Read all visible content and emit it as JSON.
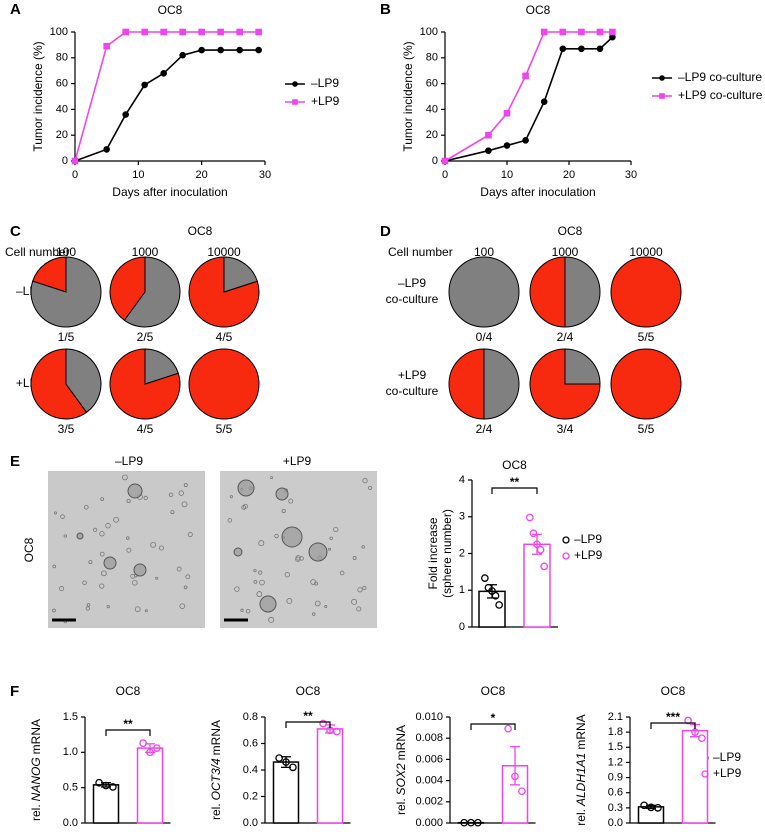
{
  "chart_data": [
    {
      "type": "line",
      "panel": "A",
      "title": "OC8",
      "xlabel": "Days after inoculation",
      "ylabel": "Tumor incidence (%)",
      "x": [
        0,
        5,
        8,
        11,
        14,
        17,
        20,
        23,
        26,
        29
      ],
      "series": [
        {
          "name": "–LP9",
          "color": "#000000",
          "marker": "circle",
          "values": [
            0,
            9,
            36,
            59,
            68,
            82,
            86,
            86,
            86,
            86
          ]
        },
        {
          "name": "+LP9",
          "color": "#ee45ee",
          "marker": "square",
          "values": [
            0,
            89,
            100,
            100,
            100,
            100,
            100,
            100,
            100,
            100
          ]
        }
      ],
      "xlim": [
        0,
        30
      ],
      "xticks": [
        0,
        10,
        20,
        30
      ],
      "ylim": [
        0,
        100
      ],
      "yticks": [
        0,
        20,
        40,
        60,
        80,
        100
      ]
    },
    {
      "type": "line",
      "panel": "B",
      "title": "OC8",
      "xlabel": "Days after inoculation",
      "ylabel": "Tumor incidence (%)",
      "x": [
        0,
        7,
        10,
        13,
        16,
        19,
        22,
        25,
        27
      ],
      "series": [
        {
          "name": "–LP9 co-culture",
          "color": "#000000",
          "marker": "circle",
          "values": [
            0,
            8,
            12,
            16,
            46,
            87,
            87,
            87,
            96
          ]
        },
        {
          "name": "+LP9 co-culture",
          "color": "#ee45ee",
          "marker": "square",
          "values": [
            0,
            20,
            37,
            66,
            100,
            100,
            100,
            100,
            100
          ]
        }
      ],
      "xlim": [
        0,
        30
      ],
      "xticks": [
        0,
        10,
        20,
        30
      ],
      "ylim": [
        0,
        100
      ],
      "yticks": [
        0,
        20,
        40,
        60,
        80,
        100
      ]
    },
    {
      "type": "pie-grid",
      "panel": "C",
      "title": "OC8",
      "header": "Cell number",
      "columns": [
        "100",
        "1000",
        "10000"
      ],
      "colors": {
        "positive": "#f72a10",
        "negative": "#808080"
      },
      "rows": [
        {
          "name": [
            "–LP9"
          ],
          "values": [
            1,
            2,
            4
          ],
          "totals": [
            5,
            5,
            5
          ],
          "value_labels": [
            "1/5",
            "2/5",
            "4/5"
          ]
        },
        {
          "name": [
            "+LP9"
          ],
          "values": [
            3,
            4,
            5
          ],
          "totals": [
            5,
            5,
            5
          ],
          "value_labels": [
            "3/5",
            "4/5",
            "5/5"
          ]
        }
      ]
    },
    {
      "type": "pie-grid",
      "panel": "D",
      "title": "OC8",
      "header": "Cell number",
      "columns": [
        "100",
        "1000",
        "10000"
      ],
      "colors": {
        "positive": "#f72a10",
        "negative": "#808080"
      },
      "rows": [
        {
          "name": [
            "–LP9",
            "co-culture"
          ],
          "values": [
            0,
            2,
            5
          ],
          "totals": [
            4,
            4,
            5
          ],
          "value_labels": [
            "0/4",
            "2/4",
            "5/5"
          ]
        },
        {
          "name": [
            "+LP9",
            "co-culture"
          ],
          "values": [
            2,
            3,
            5
          ],
          "totals": [
            4,
            4,
            5
          ],
          "value_labels": [
            "2/4",
            "3/4",
            "5/5"
          ]
        }
      ]
    },
    {
      "type": "bar",
      "title": "OC8",
      "ylabel": [
        "Fold increase",
        "(sphere number)"
      ],
      "significance": "**",
      "legend": true,
      "series": [
        {
          "name": "–LP9",
          "color": "#000000",
          "values": [
            0.97
          ],
          "errors": [
            0.18
          ],
          "points": [
            1.33,
            1.07,
            0.98,
            0.85,
            0.6
          ]
        },
        {
          "name": "+LP9",
          "color": "#ee45ee",
          "values": [
            2.25
          ],
          "errors": [
            0.27
          ],
          "points": [
            2.98,
            2.55,
            2.25,
            2.1,
            1.65
          ]
        }
      ],
      "ylim": [
        0,
        4
      ],
      "yticks": [
        0,
        1,
        2,
        3,
        4
      ]
    },
    {
      "type": "bar",
      "panel": "F",
      "title": "OC8",
      "ylabel_parts": [
        "rel.",
        "NANOG",
        "mRNA"
      ],
      "significance": "**",
      "legend": false,
      "series": [
        {
          "color": "#000000",
          "values": [
            0.54
          ],
          "errors": [
            0.03
          ],
          "points": [
            0.57,
            0.53,
            0.51
          ]
        },
        {
          "color": "#ee45ee",
          "values": [
            1.06
          ],
          "errors": [
            0.06
          ],
          "points": [
            1.13,
            1.0,
            1.06
          ]
        }
      ],
      "ylim": [
        0,
        1.5
      ],
      "yticks": [
        {
          "value": 0,
          "label": "0.0"
        },
        0.5,
        {
          "value": 1,
          "label": "1.0"
        },
        1.5
      ]
    },
    {
      "type": "bar",
      "title": "OC8",
      "ylabel_parts": [
        "rel.",
        "OCT3/4",
        "mRNA"
      ],
      "significance": "**",
      "legend": false,
      "series": [
        {
          "color": "#000000",
          "values": [
            0.46
          ],
          "errors": [
            0.04
          ],
          "points": [
            0.49,
            0.46,
            0.42
          ]
        },
        {
          "color": "#ee45ee",
          "values": [
            0.71
          ],
          "errors": [
            0.03
          ],
          "points": [
            0.75,
            0.7,
            0.69
          ]
        }
      ],
      "ylim": [
        0,
        0.8
      ],
      "yticks": [
        {
          "value": 0,
          "label": "0.0"
        },
        0.2,
        0.4,
        0.6,
        0.8
      ]
    },
    {
      "type": "bar",
      "title": "OC8",
      "ylabel_parts": [
        "rel.",
        "SOX2",
        "mRNA"
      ],
      "significance": "*",
      "legend": false,
      "series": [
        {
          "color": "#000000",
          "values": [
            3e-05
          ],
          "errors": [
            1e-05
          ],
          "points": [
            3e-05,
            3e-05,
            3e-05
          ]
        },
        {
          "color": "#ee45ee",
          "values": [
            0.0054
          ],
          "errors": [
            0.0018
          ],
          "points": [
            0.0089,
            0.0044,
            0.003
          ]
        }
      ],
      "ylim": [
        0,
        0.01
      ],
      "yticks": [
        {
          "value": 0,
          "label": "0.000"
        },
        {
          "value": 0.002,
          "label": "0.002"
        },
        {
          "value": 0.004,
          "label": "0.004"
        },
        {
          "value": 0.006,
          "label": "0.006"
        },
        {
          "value": 0.008,
          "label": "0.008"
        },
        {
          "value": 0.01,
          "label": "0.010"
        }
      ]
    },
    {
      "type": "bar",
      "title": "OC8",
      "ylabel_parts": [
        "rel.",
        "ALDH1A1",
        "mRNA"
      ],
      "significance": "***",
      "legend": true,
      "series": [
        {
          "name": "–LP9",
          "color": "#000000",
          "values": [
            0.32
          ],
          "errors": [
            0.03
          ],
          "points": [
            0.35,
            0.31,
            0.3
          ]
        },
        {
          "name": "+LP9",
          "color": "#ee45ee",
          "values": [
            1.83
          ],
          "errors": [
            0.12
          ],
          "points": [
            2.03,
            1.8,
            1.68
          ]
        }
      ],
      "ylim": [
        0,
        2.1
      ],
      "yticks": [
        {
          "value": 0,
          "label": "0.0"
        },
        0.3,
        0.6,
        0.9,
        1.2,
        1.5,
        1.8,
        2.1
      ]
    }
  ],
  "images": {
    "panel": "E",
    "label": "OC8",
    "captions": [
      "–LP9",
      "+LP9"
    ]
  }
}
